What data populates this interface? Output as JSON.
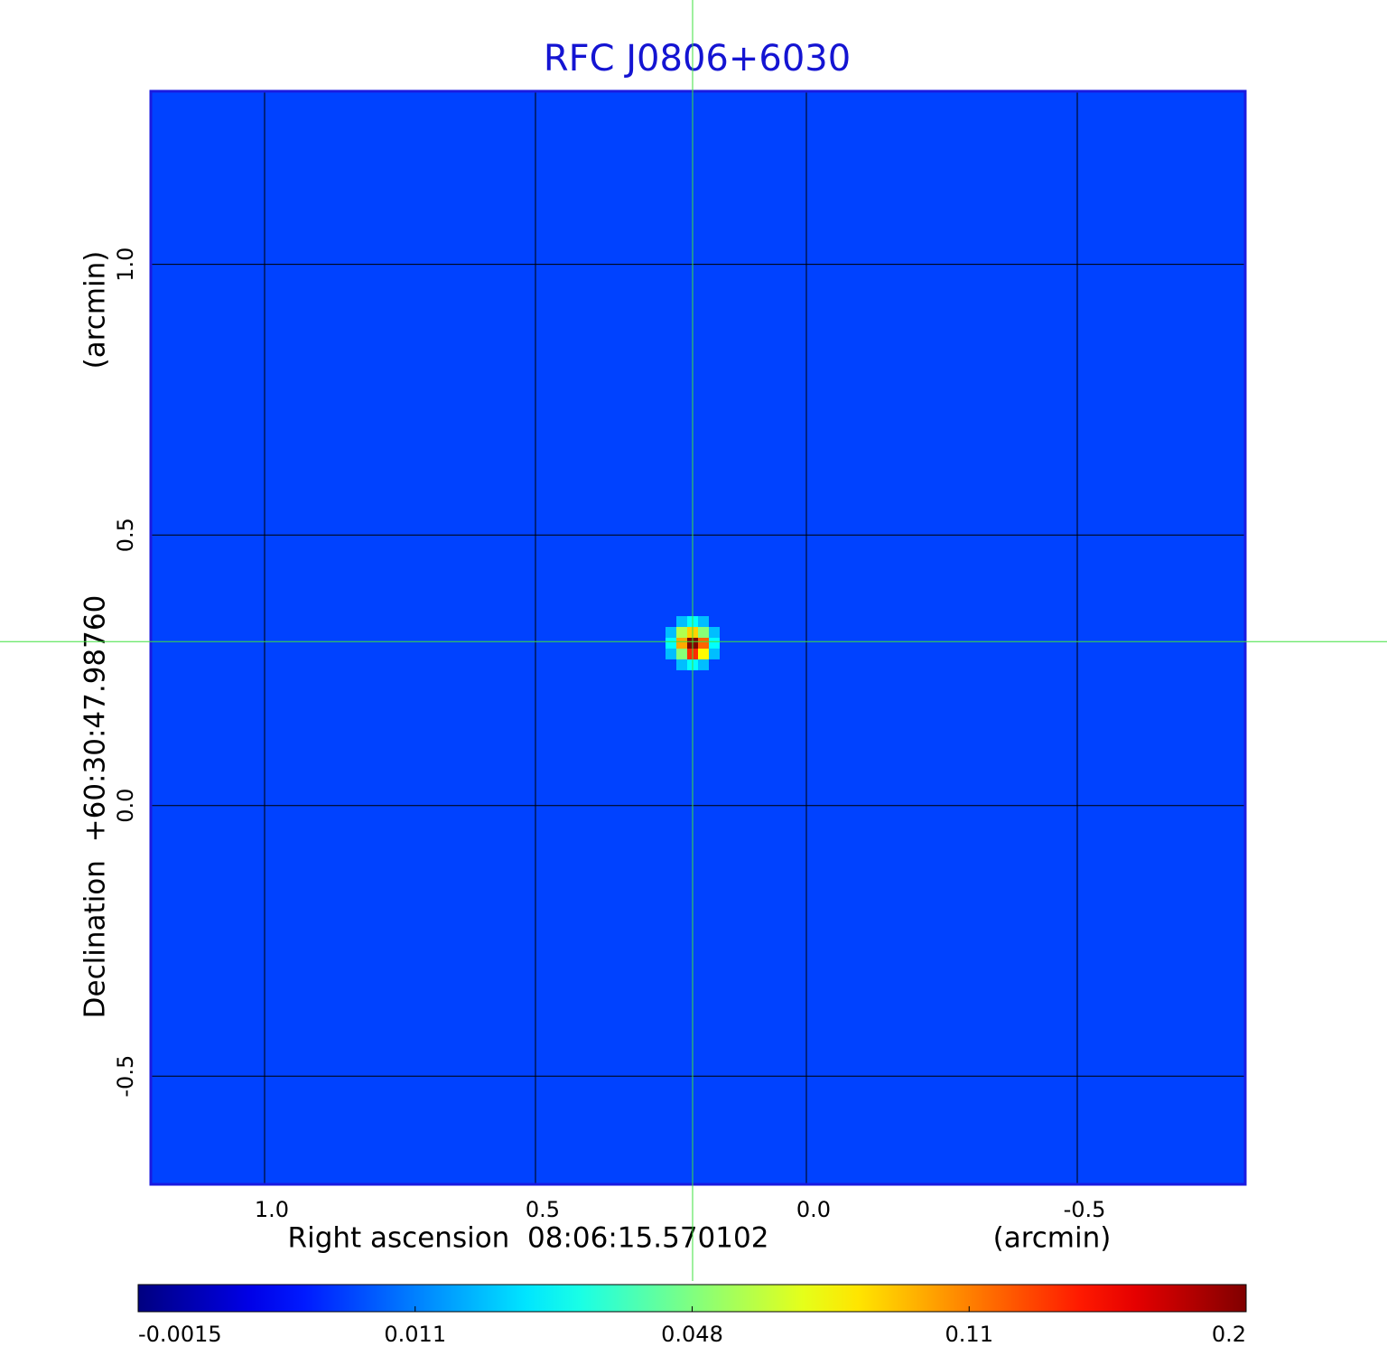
{
  "chart_data": {
    "type": "image",
    "title": "RFC J0806+6030",
    "x_label": "Right ascension  08:06:15.570102",
    "x_unit": "(arcmin)",
    "y_label": "Declination  +60:30:47.98760",
    "y_unit": "(arcmin)",
    "xlim": [
      1.21,
      -0.81
    ],
    "ylim": [
      -0.7,
      1.32
    ],
    "xticks": [
      {
        "value": 1,
        "label": "1.0"
      },
      0.5,
      {
        "value": 0,
        "label": "0.0"
      },
      -0.5
    ],
    "yticks": [
      {
        "value": 1,
        "label": "1.0"
      },
      0.5,
      {
        "value": 0,
        "label": "0.0"
      },
      -0.5
    ],
    "grid": true,
    "colormap": "jet",
    "clim": [
      -0.0015,
      0.2
    ],
    "cticks": [
      -0.0015,
      0.011,
      0.048,
      0.11,
      0.2
    ],
    "background": 0.008,
    "crosshair": [
      0.21,
      0.303
    ],
    "source": {
      "x": [
        0.25,
        0.23,
        0.21,
        0.19,
        0.17
      ],
      "y": [
        0.34,
        0.32,
        0.3,
        0.28,
        0.26
      ],
      "values": [
        [
          0.008,
          0.02,
          0.03,
          0.02,
          0.008
        ],
        [
          0.02,
          0.06,
          0.09,
          0.05,
          0.02
        ],
        [
          0.03,
          0.1,
          0.2,
          0.12,
          0.03
        ],
        [
          0.02,
          0.05,
          0.14,
          0.08,
          0.02
        ],
        [
          0.008,
          0.02,
          0.03,
          0.02,
          0.008
        ]
      ]
    }
  }
}
